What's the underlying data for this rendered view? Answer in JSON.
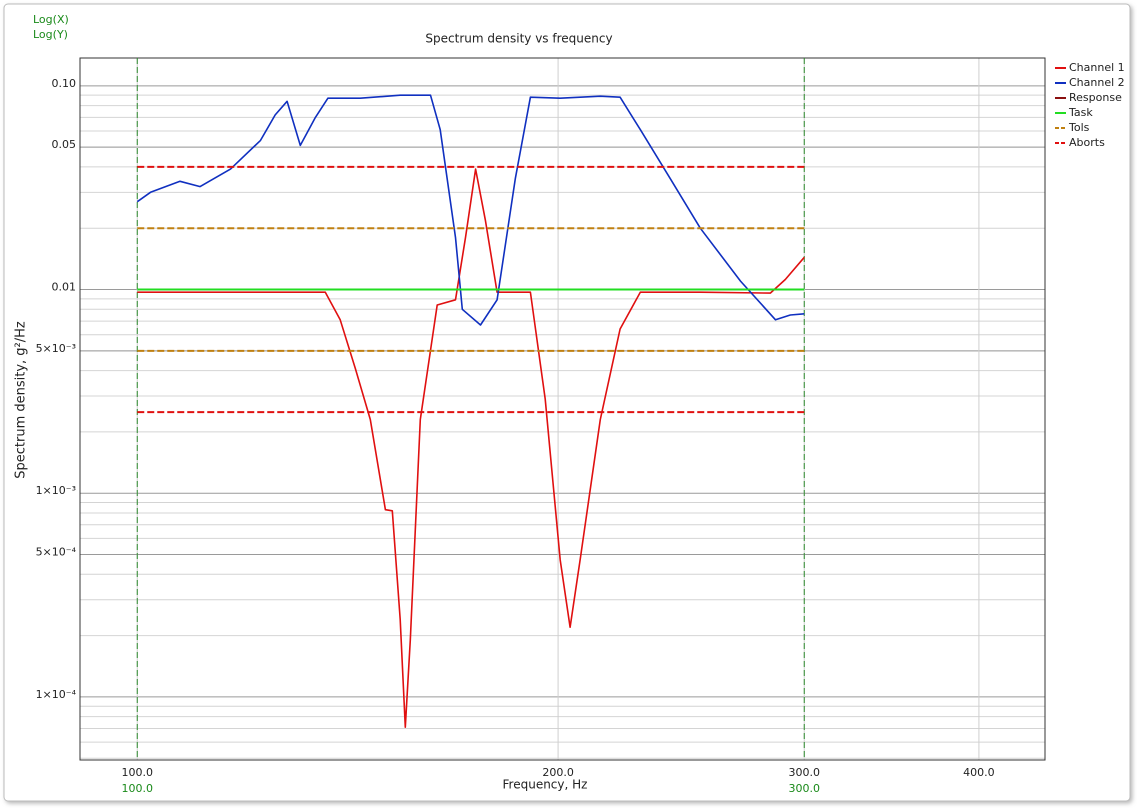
{
  "chart_data": {
    "type": "line",
    "title": "Spectrum density vs frequency",
    "notes": [
      "Log(X)",
      "Log(Y)"
    ],
    "x_label": "Frequency, Hz",
    "y_label": "Spectrum density, g²/Hz",
    "xlog": true,
    "ylog": true,
    "grid": true,
    "minor_grid": true,
    "legend": "right",
    "xlim": [
      91,
      446
    ],
    "ylim": [
      4.9e-05,
      0.137
    ],
    "xticks": [
      {
        "value": 100,
        "label": "100.0"
      },
      {
        "value": 200,
        "label": "200.0"
      },
      {
        "value": 300,
        "label": "300.0"
      },
      {
        "value": 400,
        "label": "400.0"
      }
    ],
    "yticks": [
      {
        "value": 0.1,
        "label": "0.10"
      },
      0.05,
      0.01,
      {
        "value": 0.005,
        "label": "5×10⁻³"
      },
      {
        "value": 0.001,
        "label": "1×10⁻³"
      },
      {
        "value": 0.0005,
        "label": "5×10⁻⁴"
      },
      {
        "value": 0.0001,
        "label": "1×10⁻⁴"
      }
    ],
    "range_markers": [
      {
        "value": 100,
        "label": "100.0"
      },
      {
        "value": 300,
        "label": "300.0"
      }
    ],
    "range_color": "#2e8b2e",
    "series": [
      {
        "name": "Channel 1",
        "color": "#e01010",
        "x": [
          100,
          110.9,
          130.8,
          136.3,
          139.7,
          143.2,
          146.8,
          150.5,
          152.2,
          154.2,
          155.5,
          156.8,
          159.4,
          163.9,
          168.9,
          171.7,
          174.6,
          177.4,
          180.9,
          191.1,
          195.8,
          200.7,
          204.0,
          207.4,
          214.4,
          221.5,
          229.0,
          252.8,
          283.7,
          290.8,
          300
        ],
        "values": [
          0.0097,
          0.0097,
          0.0097,
          0.0097,
          0.0071,
          0.0041,
          0.0023,
          0.00083,
          0.00082,
          0.00024,
          7.1e-05,
          0.00019,
          0.0023,
          0.0084,
          0.0089,
          0.018,
          0.039,
          0.022,
          0.0097,
          0.0097,
          0.0029,
          0.00047,
          0.00022,
          0.00047,
          0.0023,
          0.0064,
          0.0097,
          0.0097,
          0.0096,
          0.0112,
          0.0144
        ]
      },
      {
        "name": "Channel 2",
        "color": "#1030c0",
        "x": [
          100,
          102.2,
          107.3,
          110.9,
          116.6,
          122.5,
          125.5,
          128.0,
          130.8,
          134.1,
          136.9,
          144.4,
          154.2,
          162.1,
          164.7,
          168.9,
          170.8,
          176.0,
          180.9,
          186.4,
          191.1,
          200.7,
          214.4,
          221.5,
          229.0,
          240.6,
          252.8,
          270.1,
          286.1,
          293.2,
          300
        ],
        "values": [
          0.027,
          0.03,
          0.034,
          0.032,
          0.039,
          0.054,
          0.072,
          0.084,
          0.051,
          0.07,
          0.087,
          0.087,
          0.09,
          0.09,
          0.061,
          0.018,
          0.008,
          0.0067,
          0.0089,
          0.035,
          0.088,
          0.087,
          0.089,
          0.088,
          0.061,
          0.035,
          0.02,
          0.011,
          0.0071,
          0.0075,
          0.0076
        ]
      },
      {
        "name": "Response",
        "color": "#8b1010"
      },
      {
        "name": "Task",
        "color": "#22dd22",
        "x": [
          100,
          300
        ],
        "levels": [
          0.01
        ]
      },
      {
        "name": "Tols",
        "color": "#c08010",
        "dash": true,
        "x": [
          100,
          300
        ],
        "levels": [
          0.02,
          0.005
        ]
      },
      {
        "name": "Aborts",
        "color": "#e01010",
        "dash": true,
        "x": [
          100,
          300
        ],
        "levels": [
          0.04,
          0.0025
        ]
      }
    ]
  }
}
